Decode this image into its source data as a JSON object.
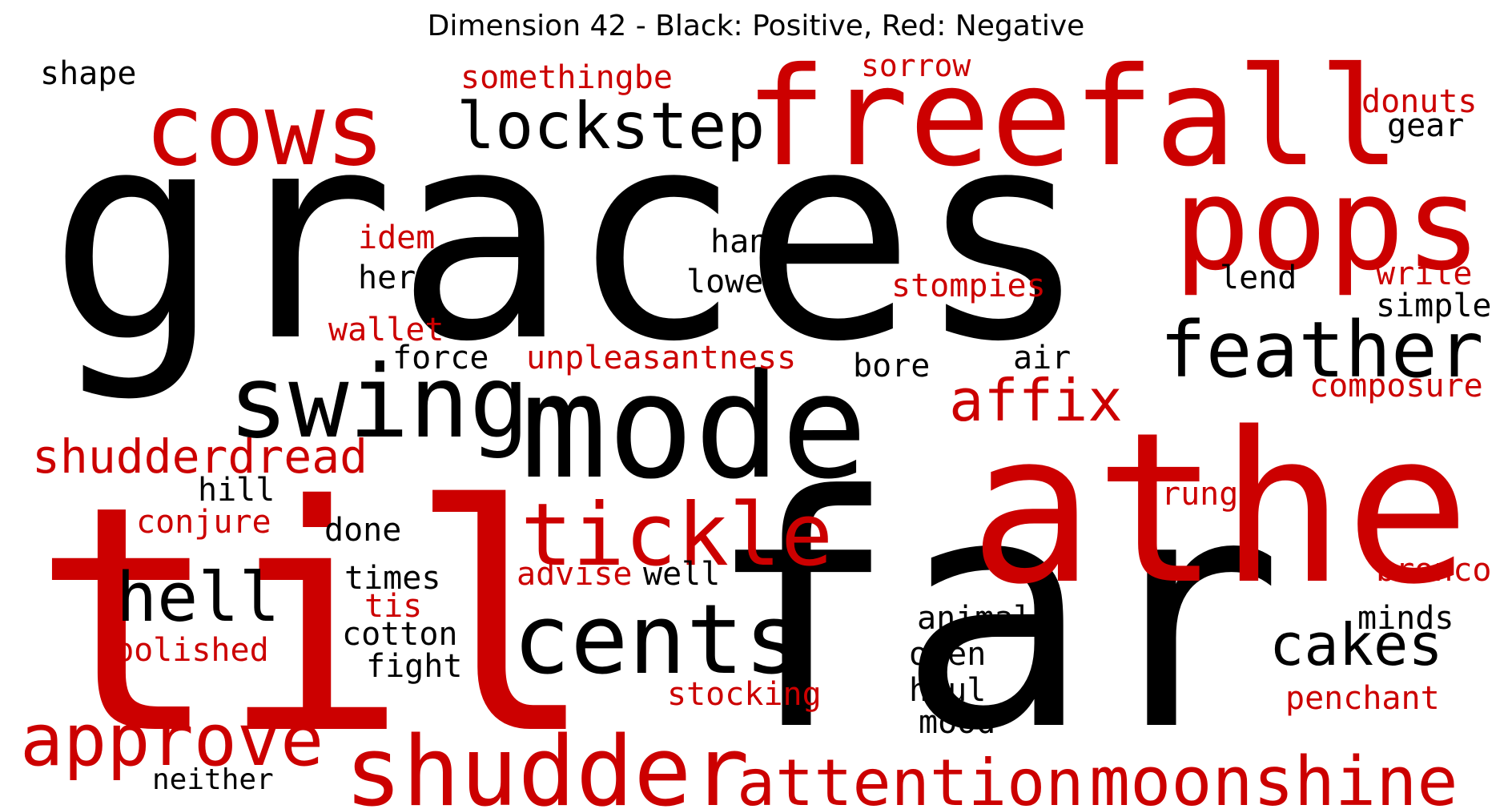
{
  "title": "Dimension 42 - Black: Positive, Red: Negative",
  "colors": {
    "positive": "#000000",
    "negative": "#cc0000"
  },
  "words": [
    {
      "text": "graces",
      "polarity": "positive"
    },
    {
      "text": "far",
      "polarity": "positive"
    },
    {
      "text": "til",
      "polarity": "negative"
    },
    {
      "text": "athe",
      "polarity": "negative"
    },
    {
      "text": "freefall",
      "polarity": "negative"
    },
    {
      "text": "mode",
      "polarity": "positive"
    },
    {
      "text": "pops",
      "polarity": "negative"
    },
    {
      "text": "cows",
      "polarity": "negative"
    },
    {
      "text": "swing",
      "polarity": "positive"
    },
    {
      "text": "shudder",
      "polarity": "negative"
    },
    {
      "text": "cents",
      "polarity": "positive"
    },
    {
      "text": "tickle",
      "polarity": "negative"
    },
    {
      "text": "feather",
      "polarity": "positive"
    },
    {
      "text": "moonshine",
      "polarity": "negative"
    },
    {
      "text": "attention",
      "polarity": "negative"
    },
    {
      "text": "approve",
      "polarity": "negative"
    },
    {
      "text": "lockstep",
      "polarity": "positive"
    },
    {
      "text": "hell",
      "polarity": "positive"
    },
    {
      "text": "cakes",
      "polarity": "positive"
    },
    {
      "text": "affix",
      "polarity": "negative"
    },
    {
      "text": "shudderdread",
      "polarity": "negative"
    },
    {
      "text": "somethingbe",
      "polarity": "negative"
    },
    {
      "text": "sorrow",
      "polarity": "negative"
    },
    {
      "text": "donuts",
      "polarity": "negative"
    },
    {
      "text": "gear",
      "polarity": "positive"
    },
    {
      "text": "shape",
      "polarity": "positive"
    },
    {
      "text": "idem",
      "polarity": "negative"
    },
    {
      "text": "here",
      "polarity": "positive"
    },
    {
      "text": "hang",
      "polarity": "positive"
    },
    {
      "text": "lower",
      "polarity": "positive"
    },
    {
      "text": "stompies",
      "polarity": "negative"
    },
    {
      "text": "lend",
      "polarity": "positive"
    },
    {
      "text": "write",
      "polarity": "negative"
    },
    {
      "text": "simple",
      "polarity": "positive"
    },
    {
      "text": "wallet",
      "polarity": "negative"
    },
    {
      "text": "force",
      "polarity": "positive"
    },
    {
      "text": "unpleasantness",
      "polarity": "negative"
    },
    {
      "text": "bore",
      "polarity": "positive"
    },
    {
      "text": "air",
      "polarity": "positive"
    },
    {
      "text": "composure",
      "polarity": "negative"
    },
    {
      "text": "hill",
      "polarity": "positive"
    },
    {
      "text": "conjure",
      "polarity": "negative"
    },
    {
      "text": "done",
      "polarity": "positive"
    },
    {
      "text": "rung",
      "polarity": "negative"
    },
    {
      "text": "times",
      "polarity": "positive"
    },
    {
      "text": "advise",
      "polarity": "negative"
    },
    {
      "text": "well",
      "polarity": "positive"
    },
    {
      "text": "bronco",
      "polarity": "negative"
    },
    {
      "text": "tis",
      "polarity": "negative"
    },
    {
      "text": "cotton",
      "polarity": "positive"
    },
    {
      "text": "polished",
      "polarity": "negative"
    },
    {
      "text": "fight",
      "polarity": "positive"
    },
    {
      "text": "animal",
      "polarity": "positive"
    },
    {
      "text": "minds",
      "polarity": "positive"
    },
    {
      "text": "open",
      "polarity": "positive"
    },
    {
      "text": "stocking",
      "polarity": "negative"
    },
    {
      "text": "haul",
      "polarity": "positive"
    },
    {
      "text": "penchant",
      "polarity": "negative"
    },
    {
      "text": "mood",
      "polarity": "positive"
    },
    {
      "text": "neither",
      "polarity": "positive"
    }
  ]
}
